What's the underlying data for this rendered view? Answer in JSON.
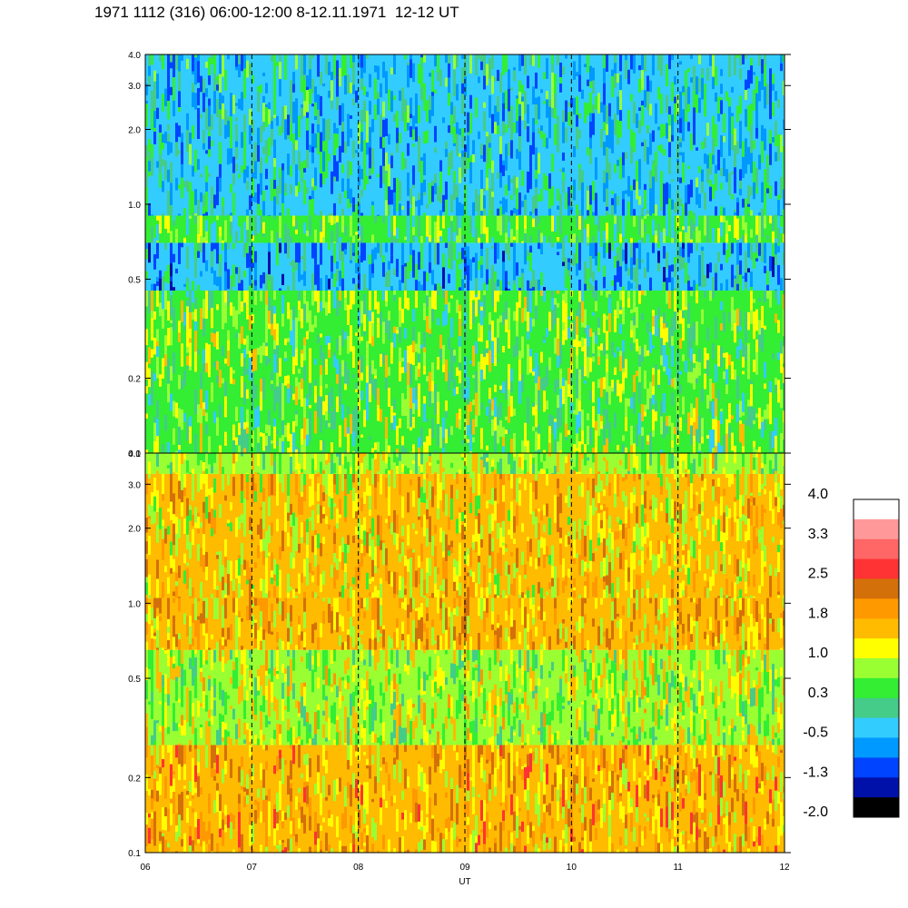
{
  "title": "1971 1112 (316) 06:00-12:00 8-12.11.1971  12-12 UT",
  "chart_data": [
    {
      "type": "heatmap",
      "panel": "upper",
      "x_label": "UT",
      "x_ticks": [
        "06",
        "07",
        "08",
        "09",
        "10",
        "11",
        "12"
      ],
      "x_range": [
        6,
        12
      ],
      "y_scale": "log",
      "y_range": [
        0.1,
        4.0
      ],
      "y_ticks": [
        "0.1",
        "0.2",
        "0.5",
        "1.0",
        "2.0",
        "3.0",
        "4.0"
      ],
      "vertical_dashed_lines_at": [
        7,
        8,
        9,
        10,
        11
      ],
      "bands": [
        {
          "y_from": 0.1,
          "y_to": 0.45,
          "dominant_level": 0.6
        },
        {
          "y_from": 0.45,
          "y_to": 0.7,
          "dominant_level": -0.4
        },
        {
          "y_from": 0.7,
          "y_to": 0.9,
          "dominant_level": 0.4
        },
        {
          "y_from": 0.9,
          "y_to": 4.0,
          "dominant_level": -0.2
        }
      ]
    },
    {
      "type": "heatmap",
      "panel": "lower",
      "x_label": "UT",
      "x_ticks": [
        "06",
        "07",
        "08",
        "09",
        "10",
        "11",
        "12"
      ],
      "x_range": [
        6,
        12
      ],
      "y_scale": "log",
      "y_range": [
        0.1,
        4.0
      ],
      "y_ticks": [
        "0.1",
        "0.2",
        "0.5",
        "1.0",
        "2.0",
        "3.0",
        "4.0"
      ],
      "vertical_dashed_lines_at": [
        7,
        8,
        9,
        10,
        11
      ],
      "bands": [
        {
          "y_from": 0.1,
          "y_to": 0.27,
          "dominant_level": 1.7
        },
        {
          "y_from": 0.27,
          "y_to": 0.65,
          "dominant_level": 0.9
        },
        {
          "y_from": 0.65,
          "y_to": 1.05,
          "dominant_level": 1.6
        },
        {
          "y_from": 1.05,
          "y_to": 3.3,
          "dominant_level": 1.4
        },
        {
          "y_from": 3.3,
          "y_to": 4.0,
          "dominant_level": 0.9
        }
      ]
    }
  ],
  "colorbar": {
    "labels": [
      "4.0",
      "3.3",
      "2.5",
      "1.8",
      "1.0",
      "0.3",
      "-0.5",
      "-1.3",
      "-2.0"
    ],
    "colors": [
      "#ffffff",
      "#ff9999",
      "#ff6666",
      "#ff3333",
      "#d4700a",
      "#ff9900",
      "#ffbb00",
      "#ffff00",
      "#99ff33",
      "#33ee33",
      "#44cc88",
      "#33ccff",
      "#0099ff",
      "#0044ff",
      "#0011aa",
      "#000000"
    ]
  }
}
